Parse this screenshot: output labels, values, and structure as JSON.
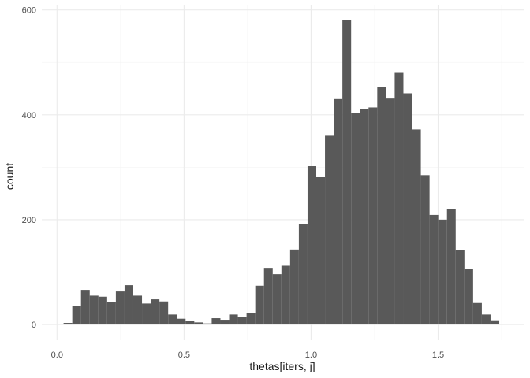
{
  "chart_data": {
    "type": "bar",
    "subtype": "histogram",
    "title": "",
    "xlabel": "thetas[iters, j]",
    "ylabel": "count",
    "xlim": [
      -0.06,
      1.84
    ],
    "ylim": [
      -30,
      610
    ],
    "x_ticks": [
      0.0,
      0.5,
      1.0,
      1.5
    ],
    "x_tick_labels": [
      "0.0",
      "0.5",
      "1.0",
      "1.5"
    ],
    "y_ticks": [
      0,
      200,
      400,
      600
    ],
    "y_tick_labels": [
      "0",
      "200",
      "400",
      "600"
    ],
    "grid": true,
    "bar_color": "#595959",
    "bin_width": 0.0343,
    "bin_start": 0.0257,
    "values": [
      3,
      36,
      66,
      55,
      53,
      43,
      63,
      75,
      55,
      40,
      48,
      44,
      19,
      11,
      7,
      4,
      2,
      12,
      9,
      19,
      15,
      22,
      74,
      108,
      96,
      112,
      143,
      192,
      302,
      281,
      360,
      430,
      580,
      404,
      411,
      414,
      453,
      431,
      480,
      441,
      372,
      285,
      209,
      200,
      220,
      142,
      106,
      41,
      19,
      8
    ]
  }
}
